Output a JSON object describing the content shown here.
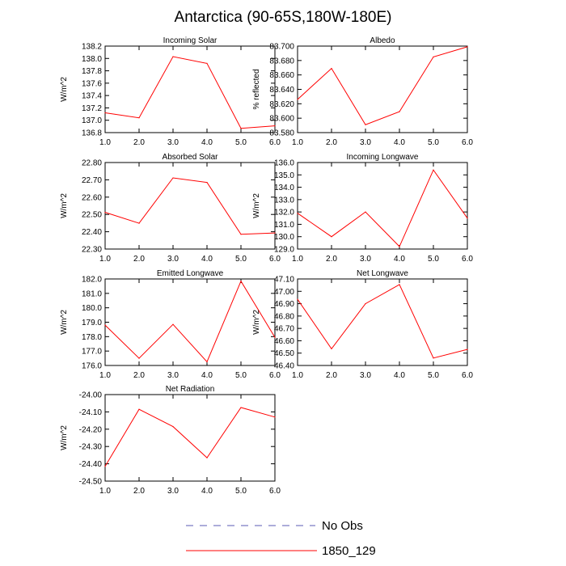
{
  "figure": {
    "title": "Antarctica (90-65S,180W-180E)",
    "line_color": "#ff0000",
    "obs_color": "#5a5ab4"
  },
  "legend": {
    "entries": [
      {
        "label": "No Obs",
        "style": "dashed",
        "color": "#5a5ab4"
      },
      {
        "label": "1850_129",
        "style": "solid",
        "color": "#ff0000"
      }
    ]
  },
  "chart_data": [
    {
      "type": "line",
      "title": "Incoming Solar",
      "ylabel": "W/m^2",
      "x": [
        1,
        2,
        3,
        4,
        5,
        6
      ],
      "xticks": [
        "1.0",
        "2.0",
        "3.0",
        "4.0",
        "5.0",
        "6.0"
      ],
      "xlim": [
        1,
        6
      ],
      "ylim": [
        136.8,
        138.2
      ],
      "yticks": [
        "136.8",
        "137.0",
        "137.2",
        "137.4",
        "137.6",
        "137.8",
        "138.0",
        "138.2"
      ],
      "series": [
        {
          "name": "1850_129",
          "values": [
            137.12,
            137.04,
            138.03,
            137.92,
            136.87,
            136.91
          ]
        }
      ]
    },
    {
      "type": "line",
      "title": "Albedo",
      "ylabel": "% reflected",
      "x": [
        1,
        2,
        3,
        4,
        5,
        6
      ],
      "xticks": [
        "1.0",
        "2.0",
        "3.0",
        "4.0",
        "5.0",
        "6.0"
      ],
      "xlim": [
        1,
        6
      ],
      "ylim": [
        83.58,
        83.7
      ],
      "yticks": [
        "83.580",
        "83.600",
        "83.620",
        "83.640",
        "83.660",
        "83.680",
        "83.700"
      ],
      "series": [
        {
          "name": "1850_129",
          "values": [
            83.626,
            83.669,
            83.591,
            83.609,
            83.685,
            83.699
          ]
        }
      ]
    },
    {
      "type": "line",
      "title": "Absorbed Solar",
      "ylabel": "W/m^2",
      "x": [
        1,
        2,
        3,
        4,
        5,
        6
      ],
      "xticks": [
        "1.0",
        "2.0",
        "3.0",
        "4.0",
        "5.0",
        "6.0"
      ],
      "xlim": [
        1,
        6
      ],
      "ylim": [
        22.3,
        22.8
      ],
      "yticks": [
        "22.30",
        "22.40",
        "22.50",
        "22.60",
        "22.70",
        "22.80"
      ],
      "series": [
        {
          "name": "1850_129",
          "values": [
            22.512,
            22.449,
            22.711,
            22.685,
            22.385,
            22.393
          ]
        }
      ]
    },
    {
      "type": "line",
      "title": "Incoming Longwave",
      "ylabel": "W/m^2",
      "x": [
        1,
        2,
        3,
        4,
        5,
        6
      ],
      "xticks": [
        "1.0",
        "2.0",
        "3.0",
        "4.0",
        "5.0",
        "6.0"
      ],
      "xlim": [
        1,
        6
      ],
      "ylim": [
        129.0,
        136.0
      ],
      "yticks": [
        "129.0",
        "130.0",
        "131.0",
        "132.0",
        "133.0",
        "134.0",
        "135.0",
        "136.0"
      ],
      "series": [
        {
          "name": "1850_129",
          "values": [
            131.9,
            130.0,
            132.0,
            129.2,
            135.4,
            131.5
          ]
        }
      ]
    },
    {
      "type": "line",
      "title": "Emitted Longwave",
      "ylabel": "W/m^2",
      "x": [
        1,
        2,
        3,
        4,
        5,
        6
      ],
      "xticks": [
        "1.0",
        "2.0",
        "3.0",
        "4.0",
        "5.0",
        "6.0"
      ],
      "xlim": [
        1,
        6
      ],
      "ylim": [
        176.0,
        182.0
      ],
      "yticks": [
        "176.0",
        "177.0",
        "178.0",
        "179.0",
        "180.0",
        "181.0",
        "182.0"
      ],
      "series": [
        {
          "name": "1850_129",
          "values": [
            178.8,
            176.5,
            178.85,
            176.25,
            181.85,
            177.95
          ]
        }
      ]
    },
    {
      "type": "line",
      "title": "Net Longwave",
      "ylabel": "W/m^2",
      "x": [
        1,
        2,
        3,
        4,
        5,
        6
      ],
      "xticks": [
        "1.0",
        "2.0",
        "3.0",
        "4.0",
        "5.0",
        "6.0"
      ],
      "xlim": [
        1,
        6
      ],
      "ylim": [
        46.4,
        47.1
      ],
      "yticks": [
        "46.40",
        "46.50",
        "46.60",
        "46.70",
        "46.80",
        "46.90",
        "47.00",
        "47.10"
      ],
      "series": [
        {
          "name": "1850_129",
          "values": [
            46.935,
            46.535,
            46.9,
            47.055,
            46.46,
            46.53
          ]
        }
      ]
    },
    {
      "type": "line",
      "title": "Net Radiation",
      "ylabel": "W/m^2",
      "x": [
        1,
        2,
        3,
        4,
        5,
        6
      ],
      "xticks": [
        "1.0",
        "2.0",
        "3.0",
        "4.0",
        "5.0",
        "6.0"
      ],
      "xlim": [
        1,
        6
      ],
      "ylim": [
        -24.5,
        -24.0
      ],
      "yticks": [
        "-24.50",
        "-24.40",
        "-24.30",
        "-24.20",
        "-24.10",
        "-24.00"
      ],
      "series": [
        {
          "name": "1850_129",
          "values": [
            -24.415,
            -24.085,
            -24.185,
            -24.365,
            -24.075,
            -24.13
          ]
        }
      ]
    }
  ]
}
